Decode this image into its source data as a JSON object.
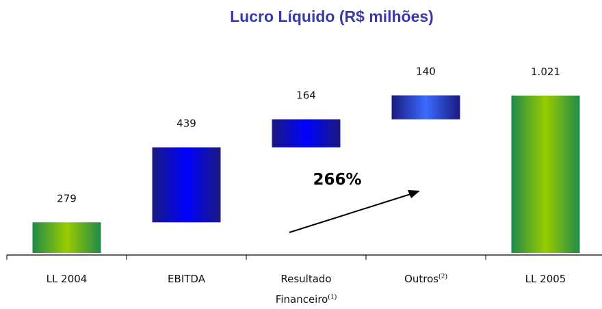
{
  "chart_data": {
    "type": "waterfall",
    "title": "Lucro Líquido (R$ milhões)",
    "categories": [
      "LL 2004",
      "EBITDA",
      "Resultado Financeiro",
      "Outros",
      "LL 2005"
    ],
    "category_notes": [
      null,
      null,
      "(1)",
      "(2)",
      null
    ],
    "values": [
      279,
      439,
      164,
      140,
      1021
    ],
    "value_labels": [
      "279",
      "439",
      "164",
      "140",
      "1.021"
    ],
    "total_color": "#99cc00",
    "increment_colors": [
      "#0000ff",
      "#0000ff",
      "#3a6bff"
    ],
    "ylim": [
      100,
      1180
    ],
    "annotation": "266%"
  }
}
